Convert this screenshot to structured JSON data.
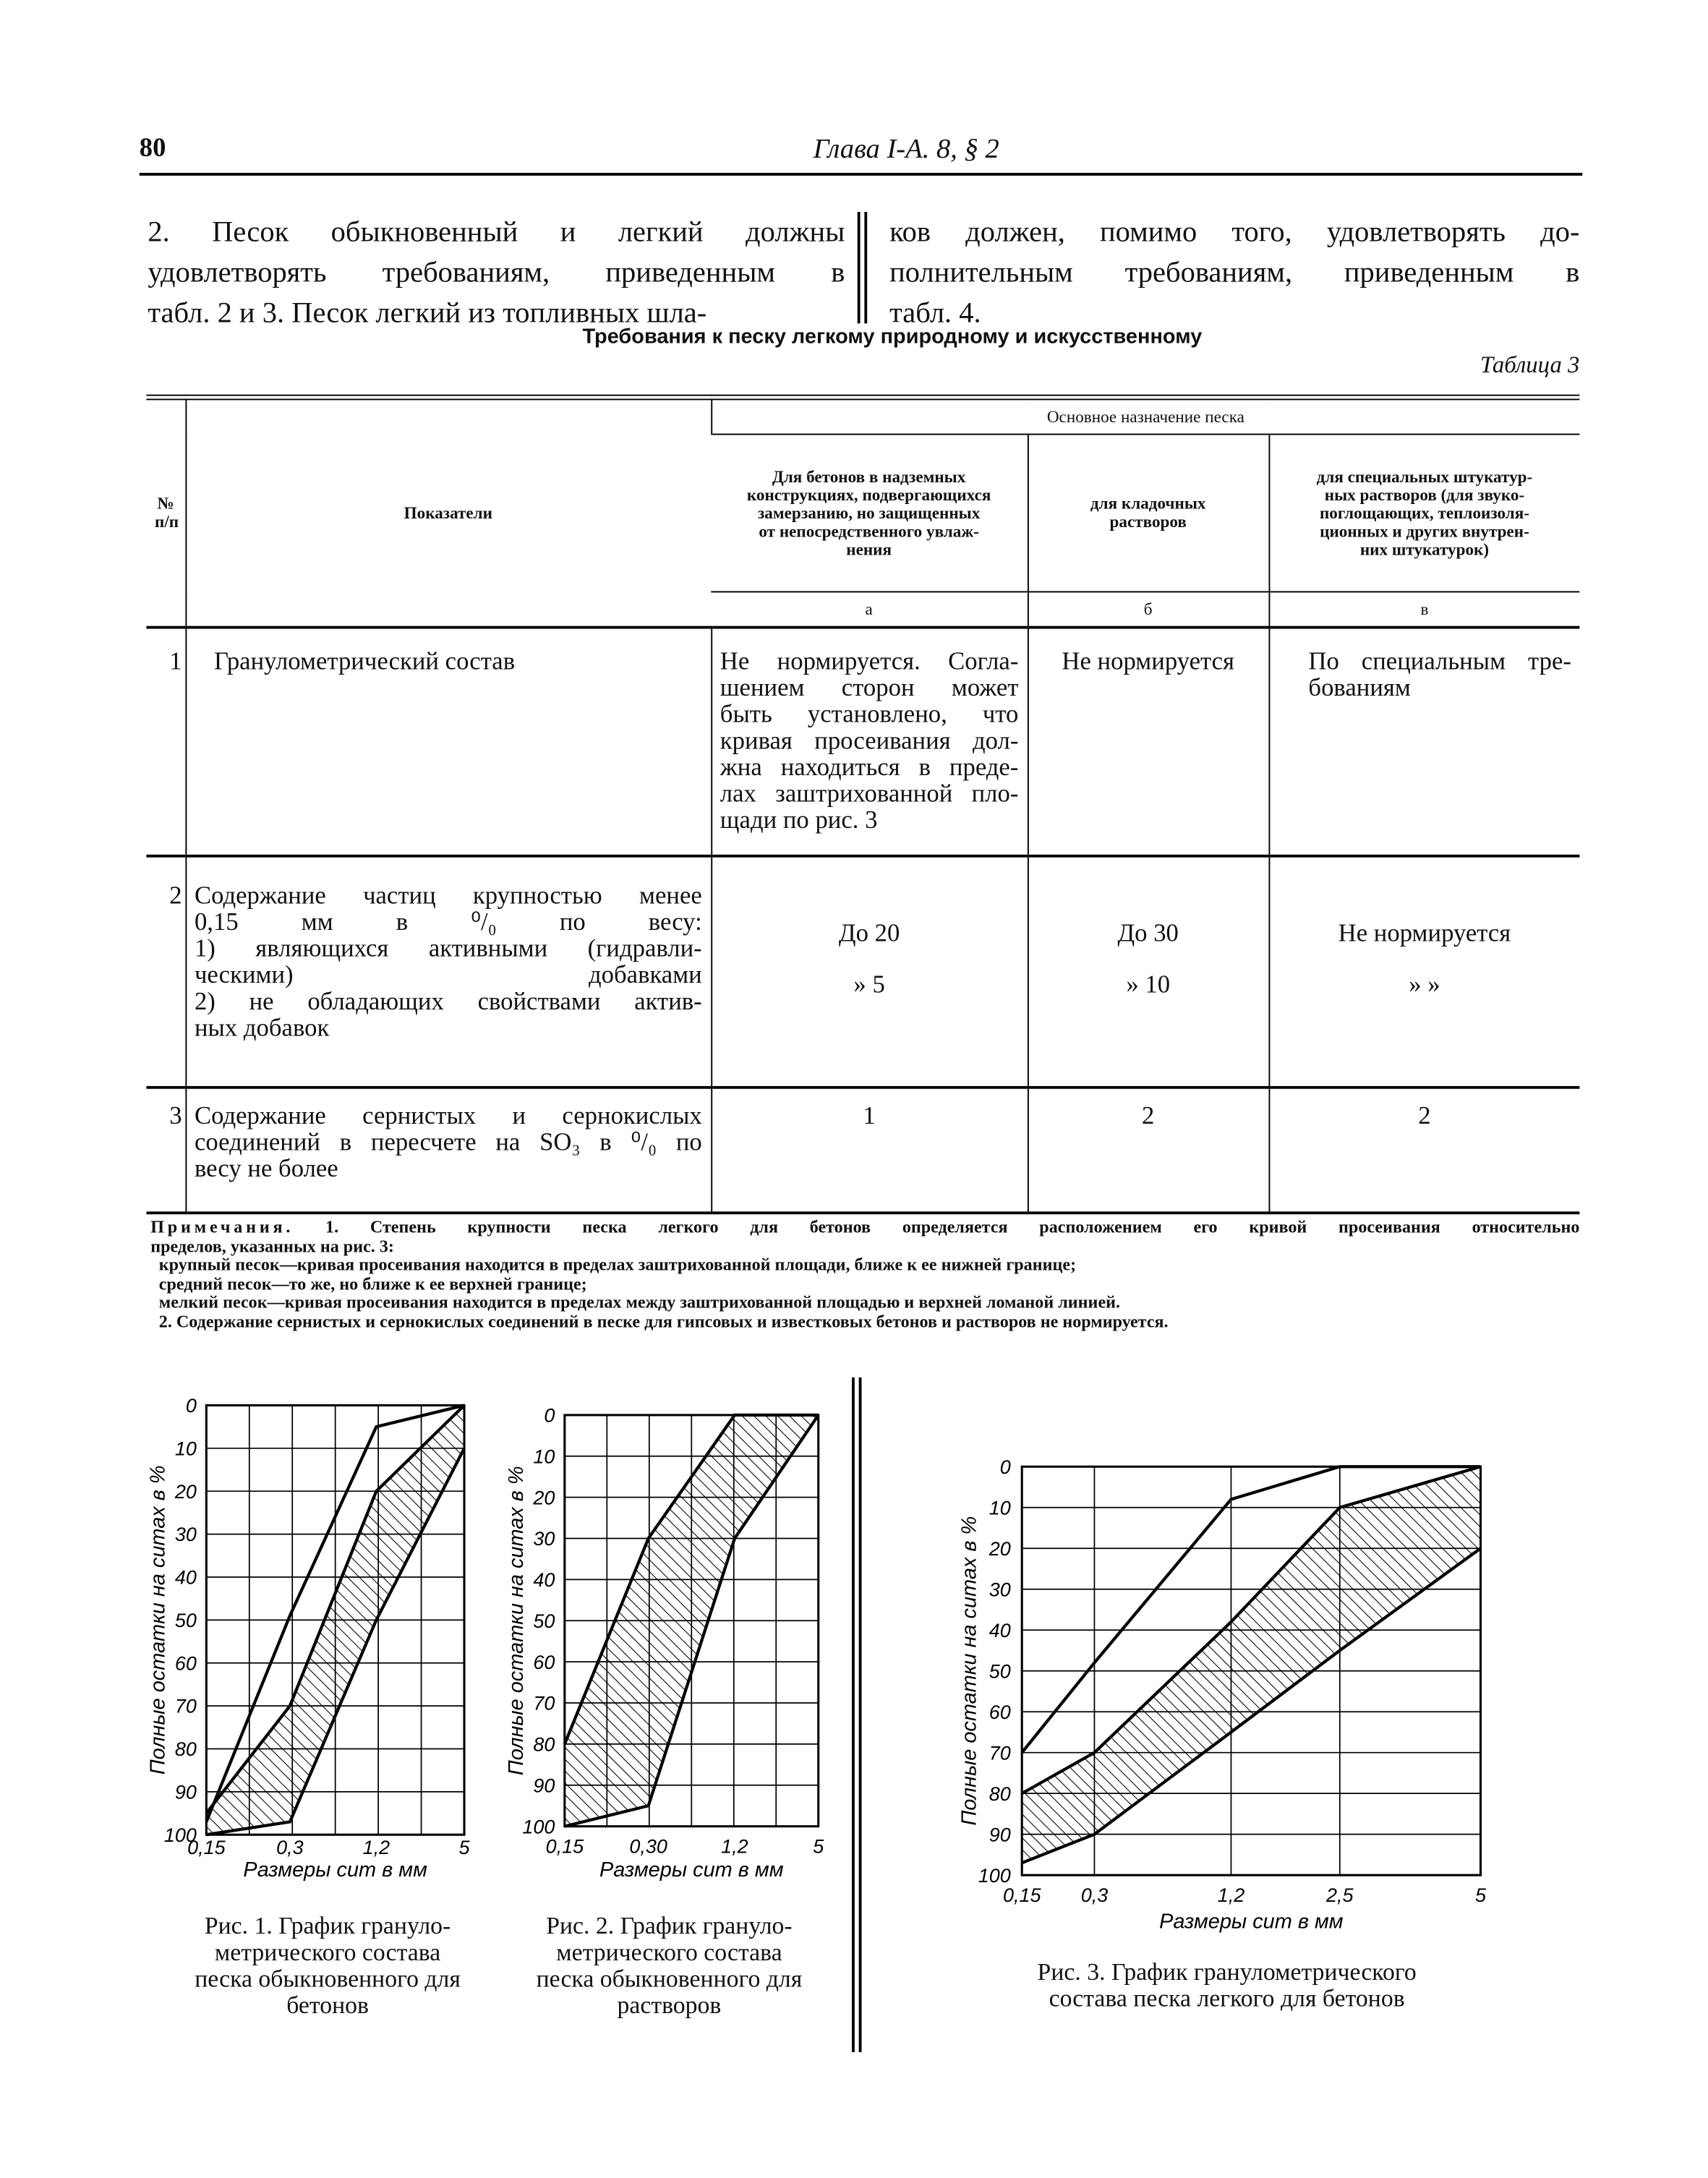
{
  "header": {
    "page_number": "80",
    "title": "Глава I-А. 8, § 2"
  },
  "paragraph": {
    "left_lines": [
      "2. Песок обыкновенный и легкий должны",
      "удовлетворять требованиям, приведенным в",
      "табл. 2 и 3. Песок легкий из топливных шла-"
    ],
    "right_lines": [
      "ков должен, помимо того, удовлетворять до-",
      "полнительным требованиям, приведенным в",
      "табл. 4."
    ]
  },
  "table": {
    "title": "Требования к песку легкому природному и искусственному",
    "number_label": "Таблица 3",
    "header": {
      "number": [
        "№",
        "п/п"
      ],
      "indicator": "Показатели",
      "group": "Основное назначение песка",
      "columns": [
        {
          "title": [
            "Для бетонов в надземных",
            "конструкциях, подвергающихся",
            "замерзанию, но защищенных",
            "от непосредственного увлаж-",
            "нения"
          ],
          "letter": "а"
        },
        {
          "title": [
            "для кладочных",
            "растворов"
          ],
          "letter": "б"
        },
        {
          "title": [
            "для специальных штукатур-",
            "ных растворов (для звуко-",
            "поглощающих, теплоизоля-",
            "ционных и других внутрен-",
            "них штукатурок)"
          ],
          "letter": "в"
        }
      ]
    },
    "rows": [
      {
        "num": "1",
        "indicator": [
          "Гранулометрический состав"
        ],
        "cells": [
          [
            "Не нормируется. Согла-",
            "шением сторон может",
            "быть установлено, что",
            "кривая просеивания дол-",
            "жна находиться в преде-",
            "лах заштрихованной пло-",
            "щади по рис. 3"
          ],
          [
            "Не нормируется"
          ],
          [
            "По специальным тре-",
            "бованиям"
          ]
        ]
      },
      {
        "num": "2",
        "indicator": [
          "Содержание частиц крупностью менее",
          "0,15 мм в ⁰/₀ по весу:",
          "1) являющихся активными (гидравли-",
          "ческими) добавками",
          "2) не обладающих свойствами актив-",
          "ных добавок"
        ],
        "cells": [
          [
            "До 20",
            "» 5"
          ],
          [
            "До 30",
            "» 10"
          ],
          [
            "Не нормируется",
            "» »"
          ]
        ]
      },
      {
        "num": "3",
        "indicator": [
          "Содержание сернистых и сернокислых",
          "соединений в пересчете на SO₃ в ⁰/₀ по",
          "весу не более"
        ],
        "cells": [
          [
            "1"
          ],
          [
            "2"
          ],
          [
            "2"
          ]
        ]
      }
    ]
  },
  "notes": {
    "label": "Примечания.",
    "lines": [
      "1. Степень крупности песка легкого для бетонов определяется расположением его кривой просеивания относительно",
      "пределов, указанных на рис. 3:",
      "крупный песок—кривая просеивания находится в пределах заштрихованной площади, ближе к ее нижней границе;",
      "средний песок—то же, но ближе к ее верхней границе;",
      "мелкий песок—кривая просеивания находится в пределах между заштрихованной площадью и верхней ломаной линией.",
      "2. Содержание сернистых и сернокислых соединений в песке для гипсовых и известковых бетонов и растворов не нормируется."
    ]
  },
  "chart_data": [
    {
      "type": "line",
      "y_label": "Полные остатки на ситах в %",
      "x_label": "Размеры сит в мм",
      "categories": [
        "0,15",
        "0,3",
        "1,2",
        "5"
      ],
      "ylim": [
        0,
        100
      ],
      "y_inverted": true,
      "yticks": [
        0,
        10,
        20,
        30,
        40,
        50,
        60,
        70,
        80,
        90,
        100
      ],
      "grid": true,
      "series": [
        {
          "color": "#000000",
          "values": [
            97,
            49,
            5,
            0
          ]
        },
        {
          "color": "#000000",
          "values": [
            95,
            70,
            20,
            0
          ]
        },
        {
          "color": "#000000",
          "values": [
            100,
            97,
            50,
            10
          ]
        }
      ],
      "hatched_between": [
        1,
        2
      ],
      "caption": [
        "Рис. 1. График грануло-",
        "метрического состава",
        "песка обыкновенного для",
        "бетонов"
      ]
    },
    {
      "type": "line",
      "y_label": "Полные остатки на ситах в %",
      "x_label": "Размеры сит в мм",
      "categories": [
        "0,15",
        "0,30",
        "1,2",
        "5"
      ],
      "ylim": [
        0,
        100
      ],
      "y_inverted": true,
      "yticks": [
        0,
        10,
        20,
        30,
        40,
        50,
        60,
        70,
        80,
        90,
        100
      ],
      "grid": true,
      "series": [
        {
          "color": "#000000",
          "values": [
            80,
            30,
            0,
            0
          ]
        },
        {
          "color": "#000000",
          "values": [
            100,
            95,
            30,
            0
          ]
        }
      ],
      "hatched_between": [
        0,
        1
      ],
      "caption": [
        "Рис. 2. График грануло-",
        "метрического состава",
        "песка обыкновенного для",
        "растворов"
      ]
    },
    {
      "type": "line",
      "y_label": "Полные остатки на ситах в %",
      "x_label": "Размеры сит в мм",
      "categories": [
        "0,15",
        "0,3",
        "1,2",
        "2,5",
        "5"
      ],
      "ylim": [
        0,
        100
      ],
      "y_inverted": true,
      "yticks": [
        0,
        10,
        20,
        30,
        40,
        50,
        60,
        70,
        80,
        90,
        100
      ],
      "grid": true,
      "series": [
        {
          "color": "#000000",
          "values": [
            70,
            48,
            8,
            0,
            0
          ]
        },
        {
          "color": "#000000",
          "values": [
            80,
            70,
            38,
            10,
            0
          ]
        },
        {
          "color": "#000000",
          "values": [
            97,
            90,
            65,
            45,
            20
          ]
        }
      ],
      "hatched_between": [
        1,
        2
      ],
      "caption": [
        "Рис. 3. График гранулометрического",
        "состава песка легкого для бетонов"
      ]
    }
  ]
}
